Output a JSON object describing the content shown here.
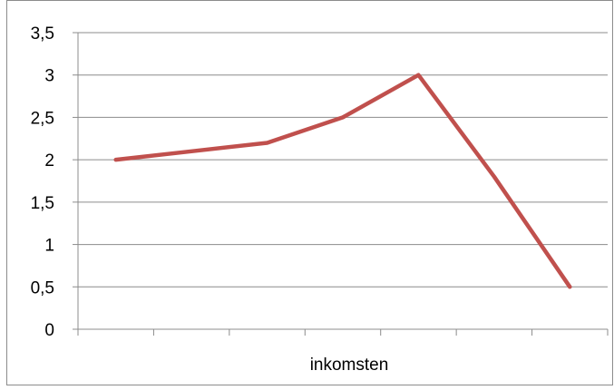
{
  "chart_data": {
    "type": "line",
    "xlabel": "inkomsten",
    "ylabel": "",
    "title": "",
    "ylim": [
      0,
      3.5
    ],
    "ytick_step": 0.5,
    "ytick_labels": [
      "0",
      "0,5",
      "1",
      "1,5",
      "2",
      "2,5",
      "3",
      "3,5"
    ],
    "grid": true,
    "legend": "none",
    "categories": [
      "",
      "",
      "",
      "",
      "",
      "",
      ""
    ],
    "series": [
      {
        "values": [
          2.0,
          2.1,
          2.2,
          2.5,
          3.0,
          1.8,
          0.5
        ],
        "color": "#c0504d"
      }
    ]
  }
}
